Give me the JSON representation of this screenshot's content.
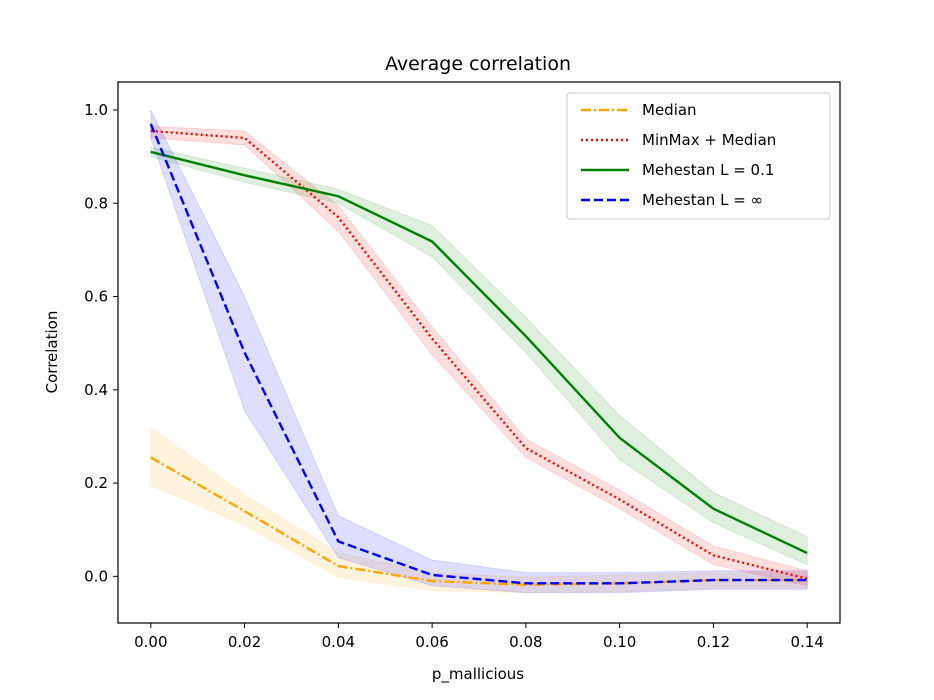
{
  "chart_data": {
    "type": "line",
    "title": "Average correlation",
    "xlabel": "p_mallicious",
    "ylabel": "Correlation",
    "xlim": [
      -0.007,
      0.147
    ],
    "ylim": [
      -0.1,
      1.06
    ],
    "x": [
      0.0,
      0.02,
      0.04,
      0.06,
      0.08,
      0.1,
      0.12,
      0.14
    ],
    "x_ticks": [
      "0.00",
      "0.02",
      "0.04",
      "0.06",
      "0.08",
      "0.10",
      "0.12",
      "0.14"
    ],
    "y_ticks": [
      "0.0",
      "0.2",
      "0.4",
      "0.6",
      "0.8",
      "1.0"
    ],
    "legend_position": "top-right",
    "grid": false,
    "series": [
      {
        "name": "Median",
        "color": "#FFA500",
        "style": "dashdot",
        "values": [
          0.255,
          0.14,
          0.022,
          -0.01,
          -0.018,
          -0.015,
          -0.008,
          -0.008
        ],
        "lower": [
          0.195,
          0.11,
          -0.002,
          -0.03,
          -0.035,
          -0.033,
          -0.025,
          -0.025
        ],
        "upper": [
          0.32,
          0.175,
          0.05,
          0.008,
          -0.002,
          0.003,
          0.008,
          0.008
        ]
      },
      {
        "name": "MinMax + Median",
        "color": "#FF0000",
        "style": "dotted",
        "values": [
          0.955,
          0.94,
          0.77,
          0.51,
          0.275,
          0.165,
          0.045,
          -0.005
        ],
        "lower": [
          0.94,
          0.925,
          0.74,
          0.475,
          0.255,
          0.145,
          0.025,
          -0.02
        ],
        "upper": [
          0.965,
          0.955,
          0.795,
          0.535,
          0.295,
          0.185,
          0.065,
          0.012
        ]
      },
      {
        "name": "Mehestan  L = 0.1",
        "color": "#008000",
        "style": "solid",
        "values": [
          0.91,
          0.86,
          0.815,
          0.718,
          0.515,
          0.297,
          0.145,
          0.05
        ],
        "lower": [
          0.9,
          0.845,
          0.8,
          0.685,
          0.48,
          0.25,
          0.115,
          0.025
        ],
        "upper": [
          0.92,
          0.875,
          0.83,
          0.752,
          0.555,
          0.345,
          0.18,
          0.085
        ]
      },
      {
        "name": "Mehestan  L = ∞",
        "color": "#0000FF",
        "style": "dashed",
        "values": [
          0.97,
          0.48,
          0.075,
          0.003,
          -0.015,
          -0.015,
          -0.008,
          -0.008
        ],
        "lower": [
          0.94,
          0.355,
          0.04,
          -0.02,
          -0.035,
          -0.035,
          -0.028,
          -0.028
        ],
        "upper": [
          1.0,
          0.6,
          0.13,
          0.035,
          0.008,
          0.008,
          0.012,
          0.012
        ]
      }
    ]
  }
}
